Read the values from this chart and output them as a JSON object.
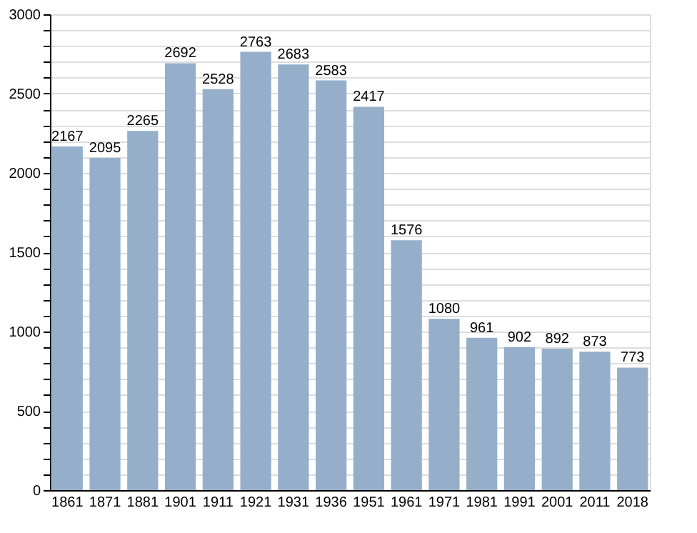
{
  "chart_data": {
    "type": "bar",
    "categories": [
      "1861",
      "1871",
      "1881",
      "1901",
      "1911",
      "1921",
      "1931",
      "1936",
      "1951",
      "1961",
      "1971",
      "1981",
      "1991",
      "2001",
      "2011",
      "2018"
    ],
    "values": [
      2167,
      2095,
      2265,
      2692,
      2528,
      2763,
      2683,
      2583,
      2417,
      1576,
      1080,
      961,
      902,
      892,
      873,
      773
    ],
    "color": "#95afcb",
    "ylim": [
      0,
      3000
    ],
    "yticks": [
      0,
      {
        "value": 100,
        "label": null
      },
      {
        "value": 200,
        "label": null
      },
      {
        "value": 300,
        "label": null
      },
      {
        "value": 400,
        "label": null
      },
      500,
      {
        "value": 600,
        "label": null
      },
      {
        "value": 700,
        "label": null
      },
      {
        "value": 800,
        "label": null
      },
      {
        "value": 900,
        "label": null
      },
      1000,
      {
        "value": 1100,
        "label": null
      },
      {
        "value": 1200,
        "label": null
      },
      {
        "value": 1300,
        "label": null
      },
      {
        "value": 1400,
        "label": null
      },
      1500,
      {
        "value": 1600,
        "label": null
      },
      {
        "value": 1700,
        "label": null
      },
      {
        "value": 1800,
        "label": null
      },
      {
        "value": 1900,
        "label": null
      },
      2000,
      {
        "value": 2100,
        "label": null
      },
      {
        "value": 2200,
        "label": null
      },
      {
        "value": 2300,
        "label": null
      },
      {
        "value": 2400,
        "label": null
      },
      2500,
      {
        "value": 2600,
        "label": null
      },
      {
        "value": 2700,
        "label": null
      },
      {
        "value": 2800,
        "label": null
      },
      {
        "value": 2900,
        "label": null
      },
      3000
    ],
    "grid": "y",
    "data_labels": true
  }
}
